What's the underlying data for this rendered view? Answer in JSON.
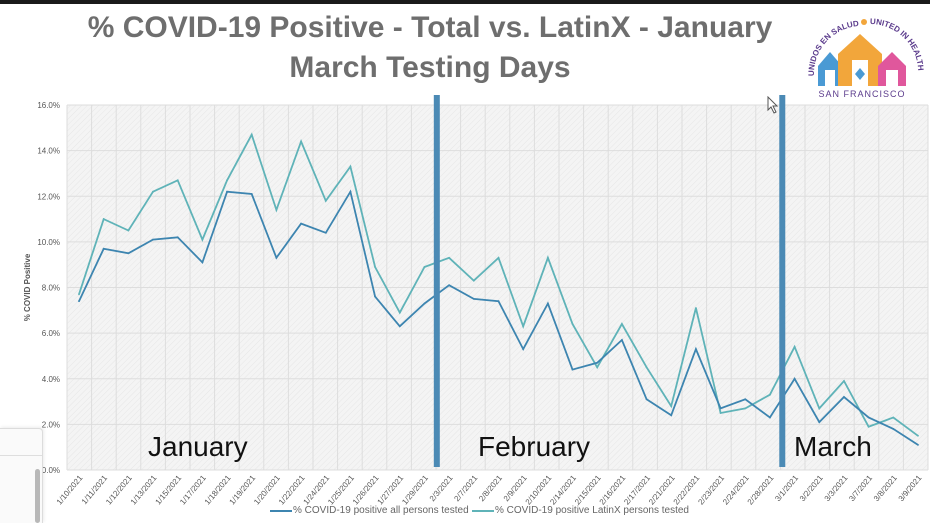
{
  "title_line1": "% COVID-19 Positive - Total vs. LatinX - January",
  "title_line2": "March Testing Days",
  "logo": {
    "text_top_left": "UNIDOS EN SALUD",
    "text_top_right": "UNITED IN HEALTH",
    "text_bottom": "SAN FRANCISCO",
    "colors": {
      "blue": "#4a9ad4",
      "orange": "#f2a63b",
      "pink": "#e0579c",
      "purple": "#5b3b8c"
    }
  },
  "colors": {
    "total": "#3d85b0",
    "latinx": "#5fb3b8",
    "divider": "#4b8ab5",
    "grid": "#dddddd",
    "axis_text": "#555555"
  },
  "chart_data": {
    "type": "line",
    "title": "% COVID-19 Positive - Total vs. LatinX - January March Testing Days",
    "xlabel": "",
    "ylabel": "% COVID Positive",
    "ylim": [
      0,
      16
    ],
    "yticks": [
      "0.0%",
      "2.0%",
      "4.0%",
      "6.0%",
      "8.0%",
      "10.0%",
      "12.0%",
      "14.0%",
      "16.0%"
    ],
    "grid": true,
    "legend_position": "bottom",
    "categories": [
      "1/10/2021",
      "1/11/2021",
      "1/12/2021",
      "1/13/2021",
      "1/15/2021",
      "1/17/2021",
      "1/18/2021",
      "1/19/2021",
      "1/20/2021",
      "1/22/2021",
      "1/24/2021",
      "1/25/2021",
      "1/26/2021",
      "1/27/2021",
      "1/29/2021",
      "2/3/2021",
      "2/7/2021",
      "2/8/2021",
      "2/9/2021",
      "2/10/2021",
      "2/14/2021",
      "2/15/2021",
      "2/16/2021",
      "2/17/2021",
      "2/21/2021",
      "2/22/2021",
      "2/23/2021",
      "2/24/2021",
      "2/28/2021",
      "3/1/2021",
      "3/2/2021",
      "3/3/2021",
      "3/7/2021",
      "3/8/2021",
      "3/9/2021"
    ],
    "series": [
      {
        "name": "% COVID-19 positive all persons tested",
        "values": [
          7.4,
          9.7,
          9.5,
          10.1,
          10.2,
          9.1,
          12.2,
          12.1,
          9.3,
          10.8,
          10.4,
          12.2,
          7.6,
          6.3,
          7.3,
          8.1,
          7.5,
          7.4,
          5.3,
          7.3,
          4.4,
          4.7,
          5.7,
          3.1,
          2.4,
          5.3,
          2.7,
          3.1,
          2.3,
          4.0,
          2.1,
          3.2,
          2.3,
          1.8,
          1.1
        ]
      },
      {
        "name": "% COVID-19 positive LatinX persons tested",
        "values": [
          7.7,
          11.0,
          10.5,
          12.2,
          12.7,
          10.1,
          12.7,
          14.7,
          11.4,
          14.4,
          11.8,
          13.3,
          8.9,
          6.9,
          8.9,
          9.3,
          8.3,
          9.3,
          6.3,
          9.3,
          6.4,
          4.5,
          6.4,
          4.5,
          2.8,
          7.1,
          2.5,
          2.7,
          3.3,
          5.4,
          2.7,
          3.9,
          1.9,
          2.3,
          1.5
        ]
      }
    ],
    "annotations": [
      {
        "text": "January"
      },
      {
        "text": "February"
      },
      {
        "text": "March"
      }
    ],
    "month_dividers_after": [
      "1/29/2021",
      "2/28/2021"
    ]
  }
}
